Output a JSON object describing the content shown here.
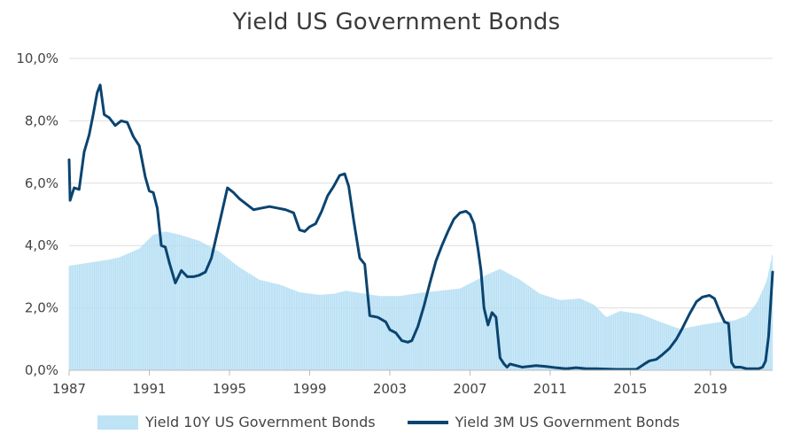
{
  "chart_data": {
    "type": "line",
    "title": "Yield US Government Bonds",
    "xlabel": "",
    "ylabel": "",
    "xlim": [
      1987,
      2022.1
    ],
    "ylim": [
      0,
      10
    ],
    "x_ticks": [
      1987,
      1991,
      1995,
      1999,
      2003,
      2007,
      2011,
      2015,
      2019
    ],
    "x_tick_labels": [
      "1987",
      "1991",
      "1995",
      "1999",
      "2003",
      "2007",
      "2011",
      "2015",
      "2019"
    ],
    "y_ticks": [
      0,
      2,
      4,
      6,
      8,
      10
    ],
    "y_tick_labels": [
      "0,0%",
      "2,0%",
      "4,0%",
      "6,0%",
      "8,0%",
      "10,0%"
    ],
    "grid": true,
    "legend_position": "bottom",
    "colors": {
      "series_10y": "#bde3f5",
      "series_3m": "#0a4470",
      "grid": "#dddddd"
    },
    "series": [
      {
        "name": "Yield 10Y US Government Bonds",
        "style": "area",
        "x": [
          1987.0,
          1988.0,
          1989.0,
          1989.5,
          1990.5,
          1991.2,
          1991.8,
          1992.5,
          1993.5,
          1994.5,
          1995.5,
          1996.5,
          1997.5,
          1998.5,
          1999.5,
          2000.2,
          2000.8,
          2001.5,
          2002.5,
          2003.5,
          2004.5,
          2005.5,
          2006.5,
          2007.2,
          2007.8,
          2008.5,
          2009.5,
          2010.5,
          2011.5,
          2012.5,
          2013.2,
          2013.8,
          2014.5,
          2015.5,
          2016.5,
          2017.5,
          2018.5,
          2019.5,
          2020.2,
          2020.8,
          2021.3,
          2021.8,
          2022.1
        ],
        "values": [
          3.35,
          3.45,
          3.55,
          3.62,
          3.9,
          4.35,
          4.45,
          4.35,
          4.15,
          3.8,
          3.3,
          2.9,
          2.75,
          2.5,
          2.42,
          2.45,
          2.55,
          2.48,
          2.38,
          2.38,
          2.48,
          2.55,
          2.62,
          2.85,
          3.05,
          3.25,
          2.9,
          2.45,
          2.25,
          2.3,
          2.1,
          1.7,
          1.9,
          1.8,
          1.55,
          1.32,
          1.45,
          1.55,
          1.6,
          1.75,
          2.15,
          2.85,
          3.75
        ]
      },
      {
        "name": "Yield 3M US Government Bonds",
        "style": "line",
        "x": [
          1987.0,
          1987.05,
          1987.25,
          1987.5,
          1987.75,
          1988.0,
          1988.2,
          1988.4,
          1988.55,
          1988.75,
          1989.0,
          1989.3,
          1989.6,
          1989.9,
          1990.2,
          1990.5,
          1990.8,
          1991.0,
          1991.2,
          1991.4,
          1991.6,
          1991.8,
          1992.0,
          1992.3,
          1992.6,
          1992.9,
          1993.2,
          1993.5,
          1993.8,
          1994.1,
          1994.35,
          1994.6,
          1994.9,
          1995.2,
          1995.5,
          1995.8,
          1996.2,
          1996.6,
          1997.0,
          1997.4,
          1997.8,
          1998.2,
          1998.5,
          1998.75,
          1999.0,
          1999.3,
          1999.6,
          1999.9,
          2000.2,
          2000.5,
          2000.75,
          2000.95,
          2001.2,
          2001.5,
          2001.75,
          2002.0,
          2002.4,
          2002.8,
          2003.0,
          2003.3,
          2003.6,
          2003.9,
          2004.1,
          2004.4,
          2004.7,
          2005.0,
          2005.3,
          2005.6,
          2005.9,
          2006.2,
          2006.5,
          2006.8,
          2007.0,
          2007.2,
          2007.4,
          2007.55,
          2007.7,
          2007.9,
          2008.1,
          2008.3,
          2008.5,
          2008.7,
          2008.85,
          2009.0,
          2009.3,
          2009.6,
          2009.9,
          2010.3,
          2010.8,
          2011.3,
          2011.8,
          2012.3,
          2012.8,
          2013.3,
          2013.8,
          2014.3,
          2014.8,
          2015.3,
          2015.7,
          2015.95,
          2016.3,
          2016.6,
          2016.95,
          2017.3,
          2017.6,
          2017.95,
          2018.3,
          2018.6,
          2018.95,
          2019.2,
          2019.45,
          2019.7,
          2019.9,
          2020.05,
          2020.2,
          2020.5,
          2020.8,
          2021.1,
          2021.4,
          2021.6,
          2021.75,
          2021.9,
          2022.1
        ],
        "values": [
          6.75,
          5.45,
          5.85,
          5.8,
          7.0,
          7.55,
          8.2,
          8.9,
          9.15,
          8.2,
          8.1,
          7.85,
          8.0,
          7.95,
          7.5,
          7.2,
          6.2,
          5.75,
          5.7,
          5.2,
          4.0,
          3.95,
          3.45,
          2.8,
          3.2,
          3.0,
          3.0,
          3.05,
          3.15,
          3.6,
          4.3,
          5.0,
          5.85,
          5.7,
          5.5,
          5.35,
          5.15,
          5.2,
          5.25,
          5.2,
          5.15,
          5.05,
          4.5,
          4.45,
          4.6,
          4.7,
          5.1,
          5.6,
          5.9,
          6.25,
          6.3,
          5.9,
          4.8,
          3.6,
          3.4,
          1.75,
          1.7,
          1.55,
          1.3,
          1.2,
          0.95,
          0.9,
          0.95,
          1.4,
          2.05,
          2.8,
          3.5,
          4.0,
          4.45,
          4.85,
          5.05,
          5.1,
          5.0,
          4.7,
          3.9,
          3.2,
          2.0,
          1.45,
          1.85,
          1.7,
          0.4,
          0.2,
          0.1,
          0.2,
          0.15,
          0.1,
          0.12,
          0.15,
          0.12,
          0.08,
          0.05,
          0.08,
          0.05,
          0.05,
          0.04,
          0.03,
          0.03,
          0.03,
          0.2,
          0.3,
          0.35,
          0.5,
          0.7,
          1.0,
          1.35,
          1.8,
          2.2,
          2.35,
          2.4,
          2.3,
          1.9,
          1.55,
          1.5,
          0.25,
          0.1,
          0.1,
          0.05,
          0.05,
          0.05,
          0.1,
          0.3,
          1.1,
          3.15
        ]
      }
    ]
  }
}
